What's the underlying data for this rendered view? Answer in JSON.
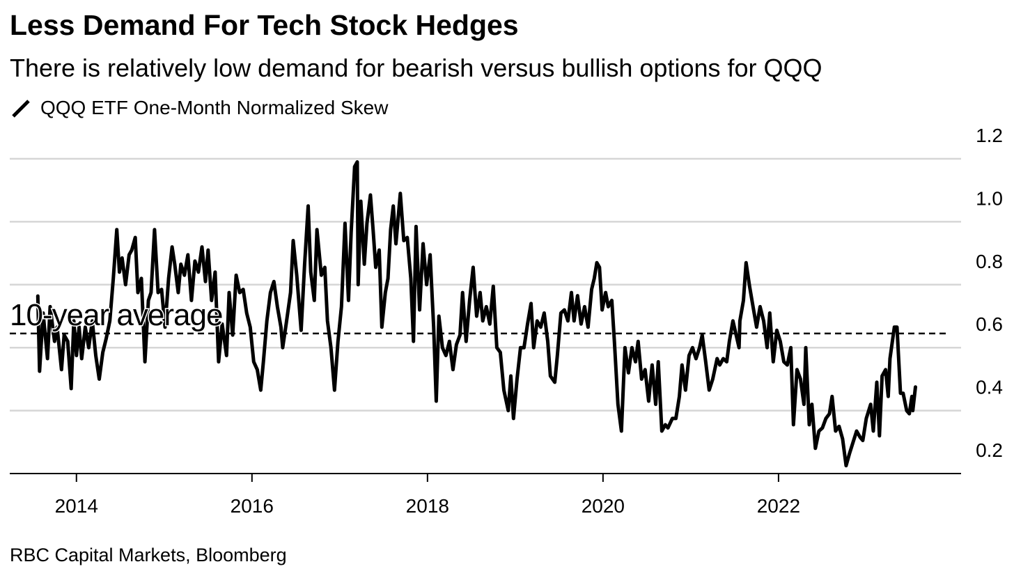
{
  "chart_data": {
    "type": "line",
    "title": "Less Demand For Tech Stock Hedges",
    "subtitle": "There is relatively low demand for bearish versus bullish options for QQQ",
    "source": "RBC Capital Markets, Bloomberg",
    "reference_line": {
      "value": 0.645,
      "label": "10-year average"
    },
    "xlim": [
      2013.24,
      2024.08
    ],
    "xticks": [
      2014,
      2016,
      2018,
      2020,
      2022
    ],
    "ylim": [
      0.2,
      1.2
    ],
    "yticks": [
      {
        "value": 0.2,
        "label": "0.2"
      },
      {
        "value": 0.4,
        "label": "0.4"
      },
      {
        "value": 0.6,
        "label": "0.6"
      },
      {
        "value": 0.8,
        "label": "0.8"
      },
      {
        "value": 1.0,
        "label": "1.0"
      },
      {
        "value": 1.2,
        "label": "1.2"
      }
    ],
    "grid": true,
    "x": [
      2013.56,
      2013.58,
      2013.62,
      2013.67,
      2013.7,
      2013.75,
      2013.78,
      2013.83,
      2013.86,
      2013.9,
      2013.94,
      2013.97,
      2014.0,
      2014.03,
      2014.06,
      2014.1,
      2014.14,
      2014.18,
      2014.22,
      2014.26,
      2014.3,
      2014.34,
      2014.38,
      2014.42,
      2014.46,
      2014.49,
      2014.52,
      2014.56,
      2014.6,
      2014.63,
      2014.67,
      2014.7,
      2014.74,
      2014.78,
      2014.82,
      2014.85,
      2014.89,
      2014.93,
      2014.97,
      2015.01,
      2015.05,
      2015.09,
      2015.12,
      2015.16,
      2015.19,
      2015.23,
      2015.27,
      2015.31,
      2015.35,
      2015.39,
      2015.43,
      2015.47,
      2015.5,
      2015.54,
      2015.58,
      2015.62,
      2015.66,
      2015.71,
      2015.74,
      2015.78,
      2015.82,
      2015.86,
      2015.9,
      2015.94,
      2015.98,
      2016.02,
      2016.06,
      2016.1,
      2016.13,
      2016.17,
      2016.21,
      2016.25,
      2016.29,
      2016.33,
      2016.35,
      2016.39,
      2016.44,
      2016.47,
      2016.51,
      2016.56,
      2016.6,
      2016.64,
      2016.67,
      2016.71,
      2016.74,
      2016.79,
      2016.83,
      2016.86,
      2016.9,
      2016.94,
      2016.98,
      2017.02,
      2017.06,
      2017.1,
      2017.13,
      2017.17,
      2017.2,
      2017.21,
      2017.24,
      2017.28,
      2017.31,
      2017.35,
      2017.38,
      2017.41,
      2017.45,
      2017.48,
      2017.52,
      2017.55,
      2017.58,
      2017.61,
      2017.64,
      2017.69,
      2017.73,
      2017.77,
      2017.81,
      2017.84,
      2017.87,
      2017.91,
      2017.95,
      2017.99,
      2018.03,
      2018.07,
      2018.1,
      2018.13,
      2018.17,
      2018.21,
      2018.25,
      2018.29,
      2018.33,
      2018.37,
      2018.4,
      2018.44,
      2018.48,
      2018.52,
      2018.56,
      2018.6,
      2018.63,
      2018.67,
      2018.71,
      2018.75,
      2018.79,
      2018.83,
      2018.87,
      2018.92,
      2018.95,
      2018.98,
      2019.02,
      2019.06,
      2019.1,
      2019.14,
      2019.18,
      2019.21,
      2019.25,
      2019.29,
      2019.33,
      2019.37,
      2019.4,
      2019.45,
      2019.48,
      2019.52,
      2019.56,
      2019.6,
      2019.64,
      2019.67,
      2019.71,
      2019.75,
      2019.79,
      2019.83,
      2019.87,
      2019.9,
      2019.93,
      2019.96,
      2019.99,
      2020.03,
      2020.06,
      2020.1,
      2020.13,
      2020.17,
      2020.21,
      2020.25,
      2020.29,
      2020.33,
      2020.37,
      2020.4,
      2020.44,
      2020.48,
      2020.52,
      2020.56,
      2020.6,
      2020.63,
      2020.67,
      2020.71,
      2020.74,
      2020.79,
      2020.83,
      2020.87,
      2020.9,
      2020.94,
      2020.98,
      2021.02,
      2021.06,
      2021.1,
      2021.13,
      2021.17,
      2021.21,
      2021.25,
      2021.3,
      2021.33,
      2021.37,
      2021.41,
      2021.44,
      2021.48,
      2021.55,
      2021.56,
      2021.6,
      2021.63,
      2021.67,
      2021.71,
      2021.75,
      2021.79,
      2021.83,
      2021.87,
      2021.9,
      2021.94,
      2021.98,
      2022.02,
      2022.06,
      2022.1,
      2022.14,
      2022.17,
      2022.21,
      2022.25,
      2022.29,
      2022.31,
      2022.35,
      2022.38,
      2022.42,
      2022.46,
      2022.5,
      2022.54,
      2022.58,
      2022.61,
      2022.65,
      2022.69,
      2022.73,
      2022.77,
      2022.81,
      2022.85,
      2022.89,
      2022.93,
      2022.96,
      2023.0,
      2023.05,
      2023.08,
      2023.12,
      2023.15,
      2023.18,
      2023.22,
      2023.25,
      2023.27,
      2023.32,
      2023.35,
      2023.39,
      2023.42,
      2023.46,
      2023.49,
      2023.52,
      2023.53,
      2023.56
    ],
    "series": [
      {
        "name": "QQQ ETF One-Month Normalized Skew",
        "color": "#000000",
        "values": [
          0.764,
          0.525,
          0.71,
          0.565,
          0.73,
          0.62,
          0.665,
          0.53,
          0.64,
          0.62,
          0.47,
          0.685,
          0.575,
          0.665,
          0.565,
          0.665,
          0.6,
          0.685,
          0.575,
          0.5,
          0.585,
          0.63,
          0.685,
          0.82,
          0.975,
          0.84,
          0.885,
          0.8,
          0.895,
          0.91,
          0.95,
          0.775,
          0.82,
          0.555,
          0.75,
          0.775,
          0.975,
          0.775,
          0.785,
          0.665,
          0.82,
          0.92,
          0.865,
          0.775,
          0.865,
          0.83,
          0.895,
          0.75,
          0.875,
          0.84,
          0.92,
          0.81,
          0.91,
          0.75,
          0.84,
          0.555,
          0.675,
          0.575,
          0.775,
          0.64,
          0.83,
          0.775,
          0.785,
          0.71,
          0.665,
          0.555,
          0.53,
          0.465,
          0.555,
          0.685,
          0.775,
          0.81,
          0.73,
          0.665,
          0.6,
          0.675,
          0.775,
          0.94,
          0.83,
          0.655,
          0.865,
          1.05,
          0.84,
          0.75,
          0.975,
          0.83,
          0.855,
          0.685,
          0.6,
          0.465,
          0.62,
          0.73,
          0.995,
          0.75,
          0.965,
          1.175,
          1.19,
          0.8,
          1.065,
          0.865,
          0.995,
          1.085,
          0.975,
          0.855,
          0.91,
          0.665,
          0.775,
          0.82,
          0.975,
          1.05,
          0.93,
          1.09,
          0.94,
          0.95,
          0.82,
          0.62,
          0.985,
          0.72,
          0.93,
          0.8,
          0.895,
          0.665,
          0.43,
          0.7,
          0.6,
          0.575,
          0.62,
          0.53,
          0.61,
          0.64,
          0.775,
          0.62,
          0.75,
          0.855,
          0.7,
          0.775,
          0.685,
          0.73,
          0.675,
          0.795,
          0.6,
          0.585,
          0.465,
          0.4,
          0.51,
          0.375,
          0.5,
          0.6,
          0.6,
          0.675,
          0.74,
          0.6,
          0.685,
          0.665,
          0.71,
          0.62,
          0.51,
          0.49,
          0.575,
          0.71,
          0.72,
          0.685,
          0.775,
          0.685,
          0.765,
          0.675,
          0.73,
          0.665,
          0.785,
          0.82,
          0.87,
          0.855,
          0.72,
          0.775,
          0.73,
          0.75,
          0.62,
          0.42,
          0.335,
          0.6,
          0.52,
          0.6,
          0.555,
          0.62,
          0.5,
          0.53,
          0.43,
          0.545,
          0.42,
          0.555,
          0.335,
          0.355,
          0.345,
          0.375,
          0.375,
          0.445,
          0.545,
          0.465,
          0.575,
          0.6,
          0.565,
          0.6,
          0.64,
          0.555,
          0.465,
          0.5,
          0.565,
          0.545,
          0.565,
          0.555,
          0.62,
          0.685,
          0.6,
          0.685,
          0.75,
          0.87,
          0.795,
          0.73,
          0.665,
          0.73,
          0.685,
          0.6,
          0.71,
          0.555,
          0.655,
          0.62,
          0.555,
          0.545,
          0.6,
          0.355,
          0.53,
          0.5,
          0.42,
          0.6,
          0.355,
          0.42,
          0.28,
          0.335,
          0.345,
          0.375,
          0.39,
          0.445,
          0.335,
          0.35,
          0.31,
          0.225,
          0.265,
          0.3,
          0.335,
          0.315,
          0.305,
          0.375,
          0.42,
          0.335,
          0.49,
          0.32,
          0.51,
          0.53,
          0.445,
          0.565,
          0.665,
          0.665,
          0.455,
          0.455,
          0.4,
          0.39,
          0.445,
          0.4,
          0.475
        ]
      }
    ]
  }
}
